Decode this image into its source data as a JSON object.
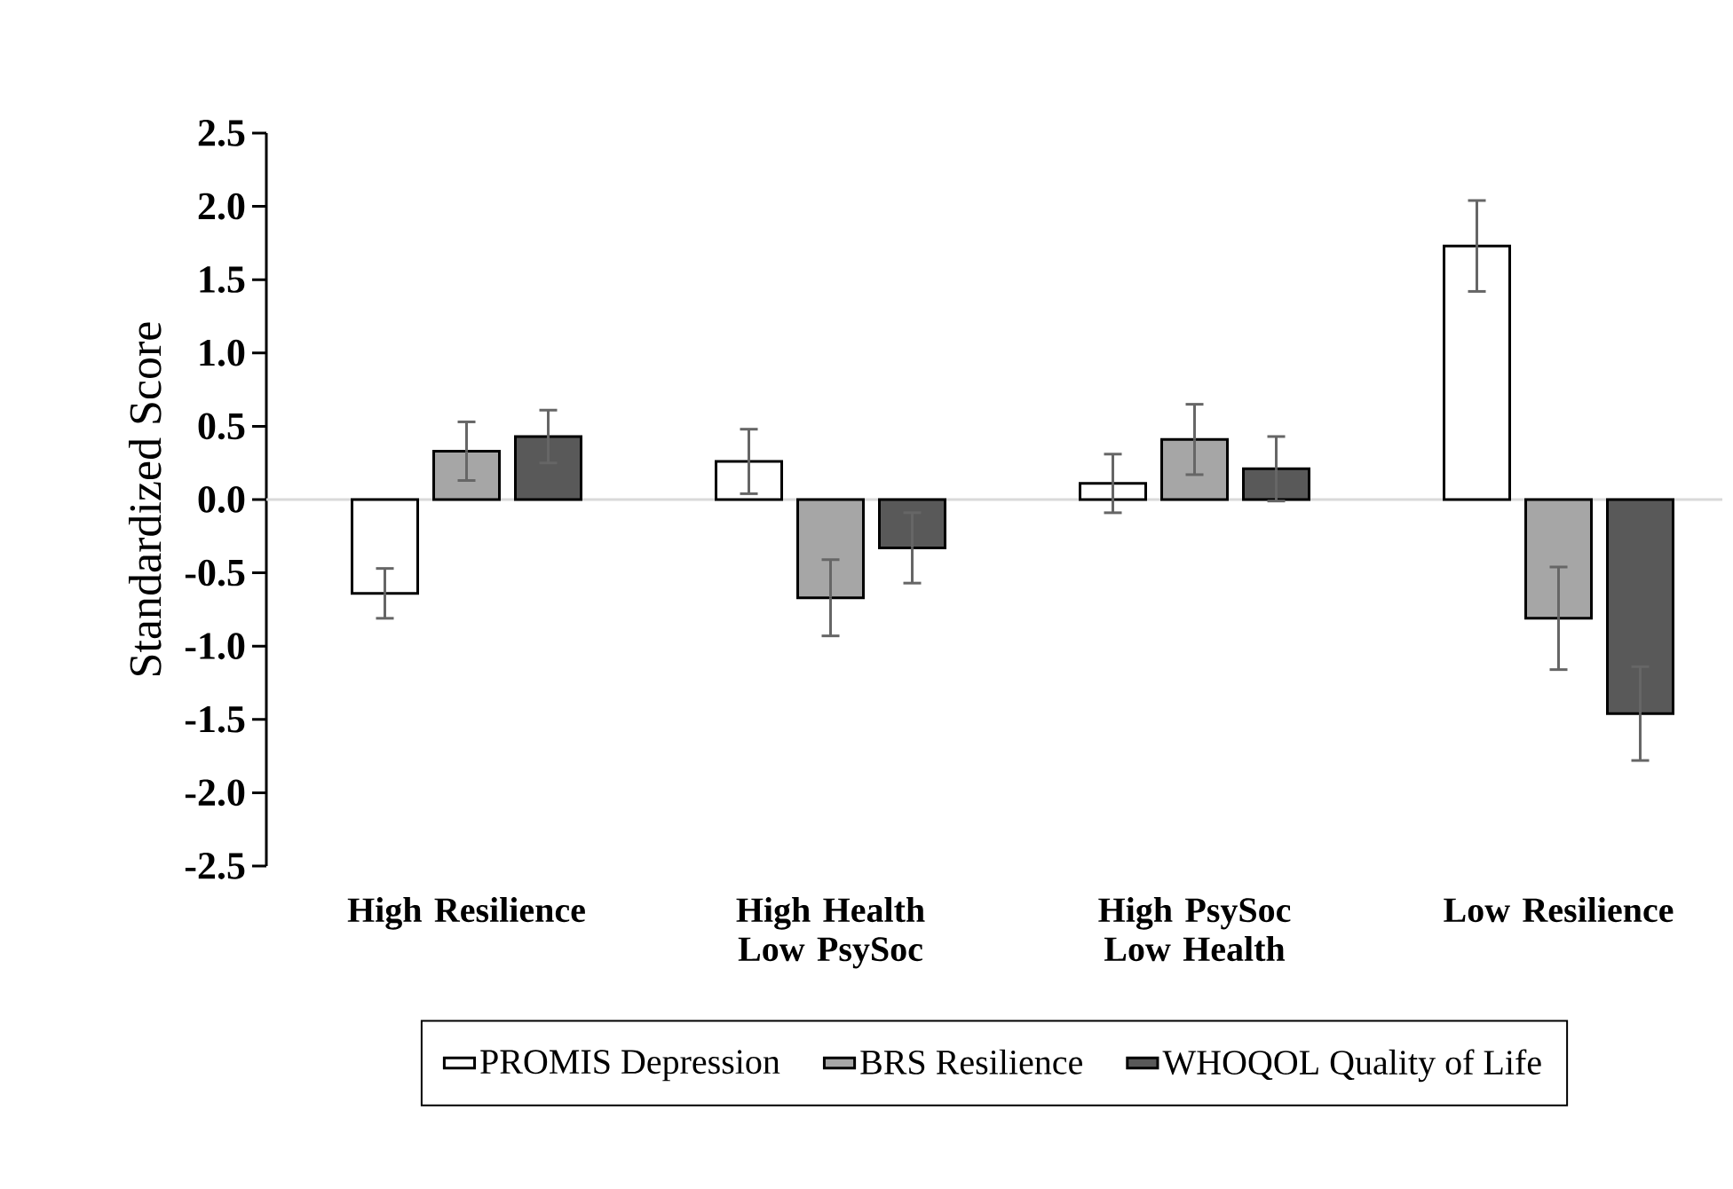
{
  "chart_data": {
    "type": "bar",
    "ylabel": "Standardized Score",
    "categories": [
      "High Resilience",
      "High Health Low PsySoc",
      "High PsySoc Low Health",
      "Low Resilience"
    ],
    "series": [
      {
        "name": "PROMIS Depression",
        "color": "#ffffff",
        "values": [
          -0.64,
          0.26,
          0.11,
          1.73
        ],
        "errors": [
          0.17,
          0.22,
          0.2,
          0.31
        ]
      },
      {
        "name": "BRS Resilience",
        "color": "#a6a6a6",
        "values": [
          0.33,
          -0.67,
          0.41,
          -0.81
        ],
        "errors": [
          0.2,
          0.26,
          0.24,
          0.35
        ]
      },
      {
        "name": "WHOQOL Quality of Life",
        "color": "#595959",
        "values": [
          0.43,
          -0.33,
          0.21,
          -1.46
        ],
        "errors": [
          0.18,
          0.24,
          0.22,
          0.32
        ]
      }
    ],
    "ylim": [
      -2.5,
      2.5
    ],
    "yticks": [
      {
        "value": -2.5,
        "label": "-2.5"
      },
      {
        "value": -2,
        "label": "-2.0"
      },
      {
        "value": -1.5,
        "label": "-1.5"
      },
      {
        "value": -1,
        "label": "-1.0"
      },
      {
        "value": -0.5,
        "label": "-0.5"
      },
      {
        "value": 0,
        "label": "0.0"
      },
      {
        "value": 0.5,
        "label": "0.5"
      },
      {
        "value": 1,
        "label": "1.0"
      },
      {
        "value": 1.5,
        "label": "1.5"
      },
      {
        "value": 2,
        "label": "2.0"
      },
      {
        "value": 2.5,
        "label": "2.5"
      }
    ],
    "ref_lines": [
      {
        "axis": "y",
        "value": 0,
        "color": "#d9d9d9"
      }
    ],
    "grid": false,
    "legend": "bottom"
  }
}
